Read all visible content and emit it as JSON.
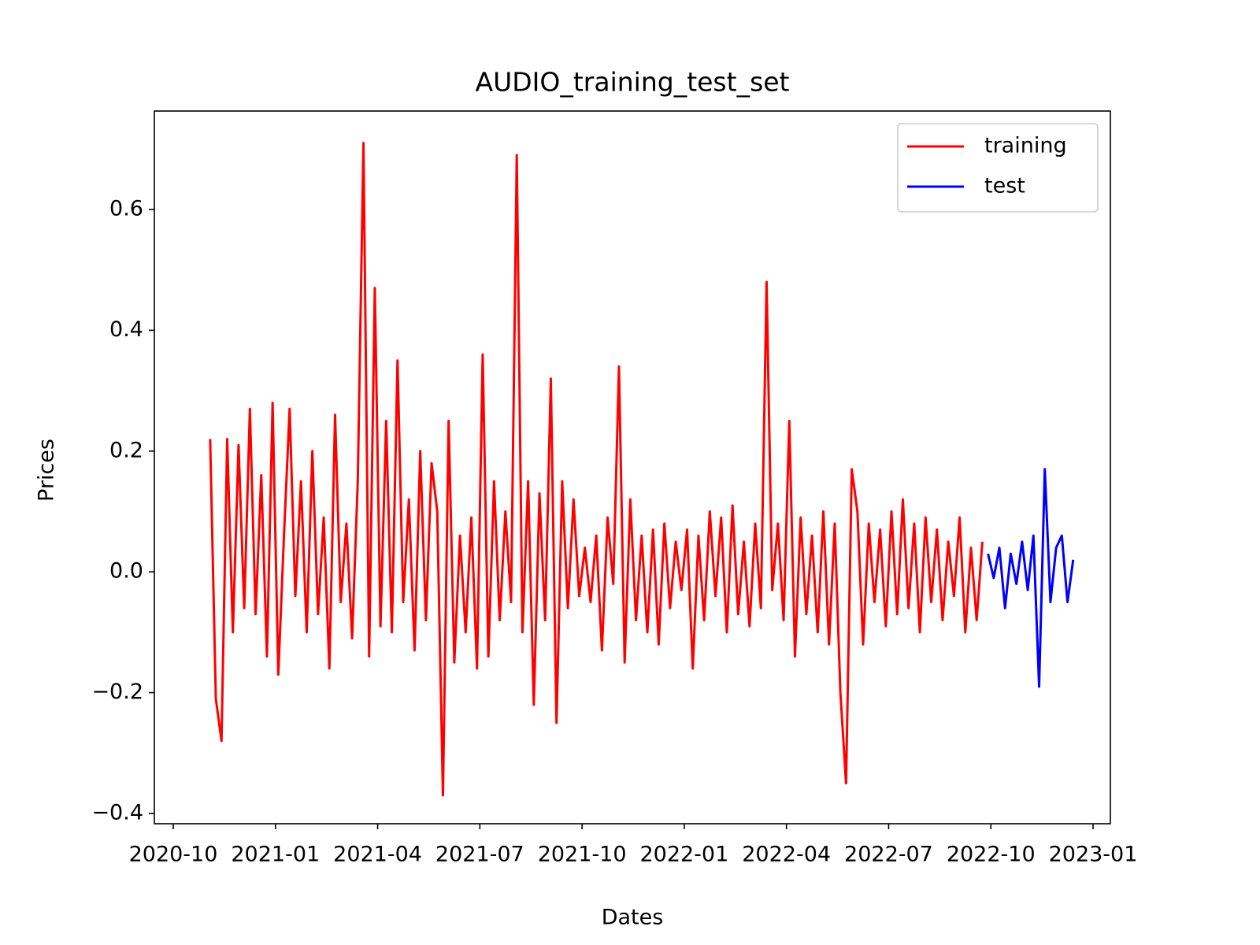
{
  "chart_data": {
    "type": "line",
    "title": "AUDIO_training_test_set",
    "xlabel": "Dates",
    "ylabel": "Prices",
    "legend": "upper right",
    "grid": false,
    "xlim": [
      "2020-10",
      "2023-01"
    ],
    "xticks": [
      "2020-10",
      "2021-01",
      "2021-04",
      "2021-07",
      "2021-10",
      "2022-01",
      "2022-04",
      "2022-07",
      "2022-10",
      "2023-01"
    ],
    "ylim": [
      -0.417,
      0.763
    ],
    "yticks": [
      {
        "value": -0.4,
        "label": "−0.4"
      },
      {
        "value": -0.2,
        "label": "−0.2"
      },
      {
        "value": 0,
        "label": "0.0"
      },
      0.2,
      0.4,
      0.6
    ],
    "series": [
      {
        "name": "training",
        "color": "#ff0000",
        "x": [
          "2020-11",
          "2020-11",
          "2020-11",
          "2020-11",
          "2020-11",
          "2020-11",
          "2020-12",
          "2020-12",
          "2020-12",
          "2020-12",
          "2020-12",
          "2020-12",
          "2021-01",
          "2021-01",
          "2021-01",
          "2021-01",
          "2021-01",
          "2021-01",
          "2021-02",
          "2021-02",
          "2021-02",
          "2021-02",
          "2021-02",
          "2021-02",
          "2021-03",
          "2021-03",
          "2021-03",
          "2021-03",
          "2021-03",
          "2021-03",
          "2021-04",
          "2021-04",
          "2021-04",
          "2021-04",
          "2021-04",
          "2021-04",
          "2021-05",
          "2021-05",
          "2021-05",
          "2021-05",
          "2021-05",
          "2021-05",
          "2021-06",
          "2021-06",
          "2021-06",
          "2021-06",
          "2021-06",
          "2021-06",
          "2021-07",
          "2021-07",
          "2021-07",
          "2021-07",
          "2021-07",
          "2021-07",
          "2021-08",
          "2021-08",
          "2021-08",
          "2021-08",
          "2021-08",
          "2021-08",
          "2021-09",
          "2021-09",
          "2021-09",
          "2021-09",
          "2021-09",
          "2021-09",
          "2021-10",
          "2021-10",
          "2021-10",
          "2021-10",
          "2021-10",
          "2021-10",
          "2021-11",
          "2021-11",
          "2021-11",
          "2021-11",
          "2021-11",
          "2021-11",
          "2021-12",
          "2021-12",
          "2021-12",
          "2021-12",
          "2021-12",
          "2021-12",
          "2022-01",
          "2022-01",
          "2022-01",
          "2022-01",
          "2022-01",
          "2022-01",
          "2022-02",
          "2022-02",
          "2022-02",
          "2022-02",
          "2022-02",
          "2022-02",
          "2022-03",
          "2022-03",
          "2022-03",
          "2022-03",
          "2022-03",
          "2022-03",
          "2022-04",
          "2022-04",
          "2022-04",
          "2022-04",
          "2022-04",
          "2022-04",
          "2022-05",
          "2022-05",
          "2022-05",
          "2022-05",
          "2022-05",
          "2022-05",
          "2022-06",
          "2022-06",
          "2022-06",
          "2022-06",
          "2022-06",
          "2022-06",
          "2022-07",
          "2022-07",
          "2022-07",
          "2022-07",
          "2022-07",
          "2022-07",
          "2022-08",
          "2022-08",
          "2022-08",
          "2022-08",
          "2022-08",
          "2022-08",
          "2022-09",
          "2022-09",
          "2022-09",
          "2022-09",
          "2022-09"
        ],
        "values": [
          0.22,
          -0.21,
          -0.28,
          0.22,
          -0.1,
          0.21,
          -0.06,
          0.27,
          -0.07,
          0.16,
          -0.14,
          0.28,
          -0.17,
          0.06,
          0.27,
          -0.04,
          0.15,
          -0.1,
          0.2,
          -0.07,
          0.09,
          -0.16,
          0.26,
          -0.05,
          0.08,
          -0.11,
          0.15,
          0.71,
          -0.14,
          0.47,
          -0.09,
          0.25,
          -0.1,
          0.35,
          -0.05,
          0.12,
          -0.13,
          0.2,
          -0.08,
          0.18,
          0.1,
          -0.37,
          0.25,
          -0.15,
          0.06,
          -0.1,
          0.09,
          -0.16,
          0.36,
          -0.14,
          0.15,
          -0.08,
          0.1,
          -0.05,
          0.69,
          -0.1,
          0.15,
          -0.22,
          0.13,
          -0.08,
          0.32,
          -0.25,
          0.15,
          -0.06,
          0.12,
          -0.04,
          0.04,
          -0.05,
          0.06,
          -0.13,
          0.09,
          -0.02,
          0.34,
          -0.15,
          0.12,
          -0.08,
          0.06,
          -0.1,
          0.07,
          -0.12,
          0.08,
          -0.06,
          0.05,
          -0.03,
          0.07,
          -0.16,
          0.06,
          -0.08,
          0.1,
          -0.04,
          0.09,
          -0.1,
          0.11,
          -0.07,
          0.05,
          -0.09,
          0.08,
          -0.06,
          0.48,
          -0.03,
          0.08,
          -0.08,
          0.25,
          -0.14,
          0.09,
          -0.07,
          0.06,
          -0.1,
          0.1,
          -0.12,
          0.08,
          -0.2,
          -0.35,
          0.17,
          0.1,
          -0.12,
          0.08,
          -0.05,
          0.07,
          -0.09,
          0.1,
          -0.07,
          0.12,
          -0.06,
          0.08,
          -0.1,
          0.09,
          -0.05,
          0.07,
          -0.08,
          0.05,
          -0.04,
          0.09,
          -0.1,
          0.04,
          -0.08,
          0.05
        ]
      },
      {
        "name": "test",
        "color": "#0000ff",
        "x": [
          "2022-09",
          "2022-10",
          "2022-10",
          "2022-10",
          "2022-10",
          "2022-10",
          "2022-10",
          "2022-11",
          "2022-11",
          "2022-11",
          "2022-11",
          "2022-11",
          "2022-11",
          "2022-12",
          "2022-12",
          "2022-12"
        ],
        "values": [
          0.03,
          -0.01,
          0.04,
          -0.06,
          0.03,
          -0.02,
          0.05,
          -0.03,
          0.06,
          -0.19,
          0.17,
          -0.05,
          0.04,
          0.06,
          -0.05,
          0.02
        ]
      }
    ]
  }
}
